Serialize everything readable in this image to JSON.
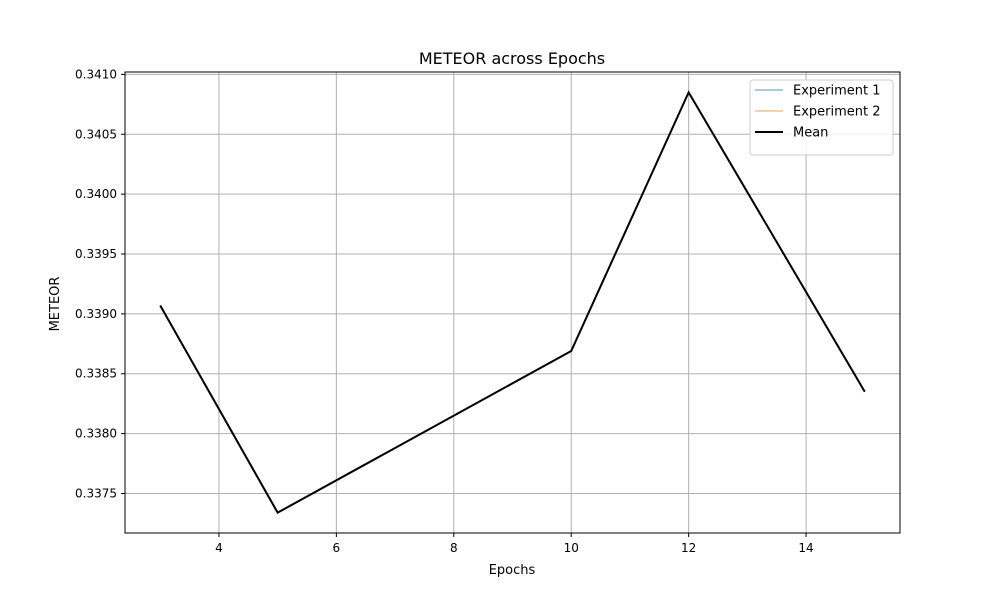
{
  "chart_data": {
    "type": "line",
    "title": "METEOR across Epochs",
    "xlabel": "Epochs",
    "ylabel": "METEOR",
    "xlim": [
      2.4,
      15.6
    ],
    "ylim": [
      0.33717,
      0.34102
    ],
    "xticks": [
      4,
      6,
      8,
      10,
      12,
      14
    ],
    "yticks": [
      0.3375,
      0.338,
      0.3385,
      0.339,
      0.3395,
      0.34,
      0.3405,
      0.341
    ],
    "ytick_labels": [
      "0.3375",
      "0.3380",
      "0.3385",
      "0.3390",
      "0.3395",
      "0.3400",
      "0.3405",
      "0.3410"
    ],
    "grid": true,
    "legend_position": "top-right",
    "series": [
      {
        "name": "Experiment 1",
        "color": "#1f77b4",
        "opacity": 0.5,
        "width": 1.5,
        "x": [
          3,
          5,
          10,
          12,
          15
        ],
        "y": [
          0.33907,
          0.33734,
          0.33869,
          0.34085,
          0.33835
        ]
      },
      {
        "name": "Experiment 2",
        "color": "#ff7f0e",
        "opacity": 0.5,
        "width": 1.5,
        "x": [
          3,
          5,
          10,
          12,
          15
        ],
        "y": [
          0.33907,
          0.33734,
          0.33869,
          0.34085,
          0.33835
        ]
      },
      {
        "name": "Mean",
        "color": "#000000",
        "opacity": 1,
        "width": 2,
        "x": [
          3,
          5,
          10,
          12,
          15
        ],
        "y": [
          0.33907,
          0.33734,
          0.33869,
          0.34085,
          0.33835
        ]
      }
    ]
  }
}
